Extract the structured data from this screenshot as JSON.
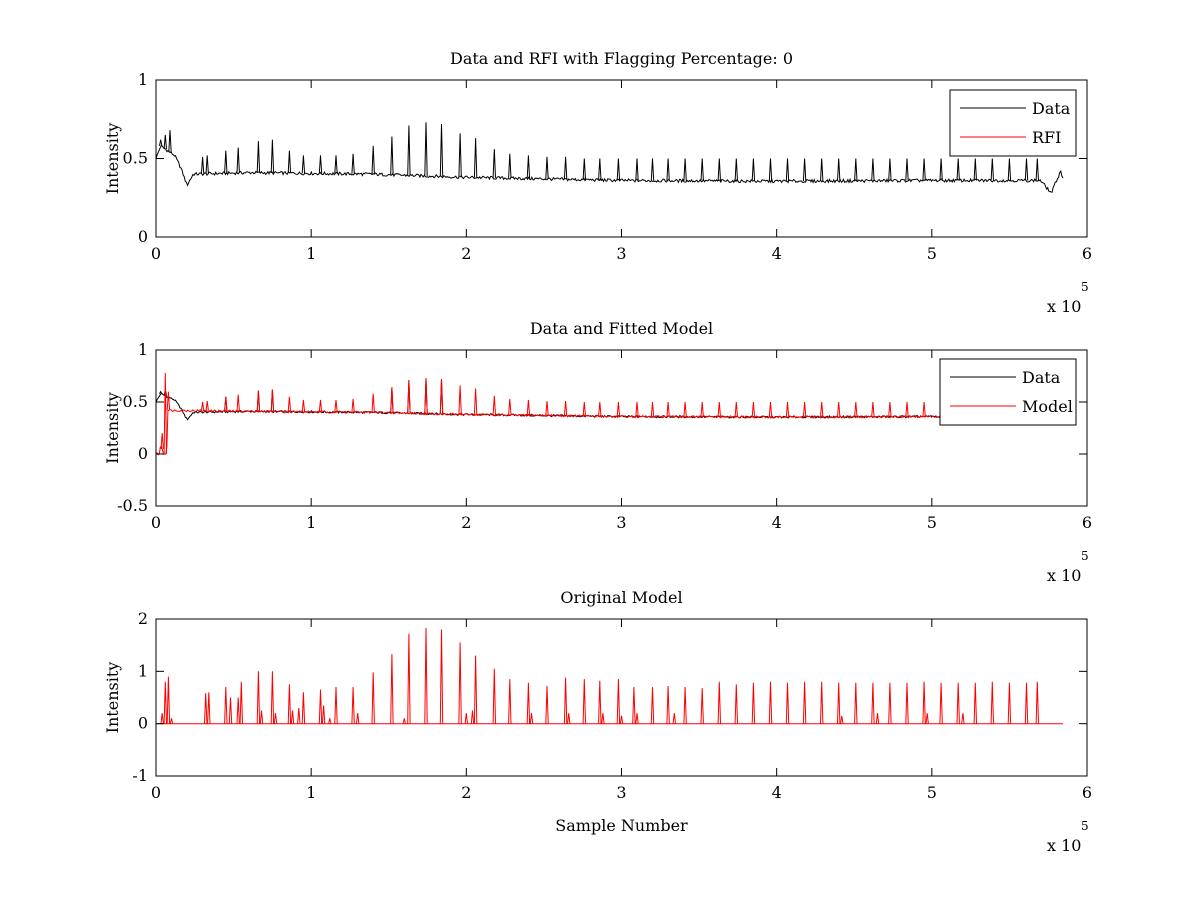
{
  "chart_data": [
    {
      "type": "line",
      "title": "Data and RFI with Flagging Percentage: 0",
      "xlabel": "",
      "ylabel": "Intensity",
      "xlim": [
        0,
        600000
      ],
      "ylim": [
        0,
        1
      ],
      "xticks": [
        0,
        100000,
        200000,
        300000,
        400000,
        500000,
        600000
      ],
      "xtick_labels": [
        "0",
        "1",
        "2",
        "3",
        "4",
        "5",
        "6"
      ],
      "x_multiplier_label": "x 10",
      "x_multiplier_exponent": "5",
      "yticks": [
        0,
        0.5,
        1
      ],
      "ytick_labels": [
        "0",
        "0.5",
        "1"
      ],
      "legend_position": "top-right",
      "series": [
        {
          "name": "Data",
          "color": "#000000",
          "kind": "data",
          "x_end": 585000,
          "baseline_points": [
            [
              0,
              0.5
            ],
            [
              3000,
              0.58
            ],
            [
              12000,
              0.52
            ],
            [
              16000,
              0.44
            ],
            [
              20000,
              0.33
            ],
            [
              24000,
              0.4
            ],
            [
              60000,
              0.41
            ],
            [
              140000,
              0.4
            ],
            [
              200000,
              0.38
            ],
            [
              300000,
              0.36
            ],
            [
              400000,
              0.355
            ],
            [
              500000,
              0.36
            ],
            [
              570000,
              0.36
            ],
            [
              577000,
              0.28
            ],
            [
              583000,
              0.42
            ],
            [
              585000,
              0.36
            ]
          ],
          "peaks": [
            [
              3000,
              0.62
            ],
            [
              6000,
              0.65
            ],
            [
              9000,
              0.68
            ],
            [
              30000,
              0.51
            ],
            [
              33000,
              0.52
            ],
            [
              45000,
              0.55
            ],
            [
              53000,
              0.57
            ],
            [
              66000,
              0.61
            ],
            [
              75000,
              0.62
            ],
            [
              86000,
              0.55
            ],
            [
              95000,
              0.52
            ],
            [
              106000,
              0.52
            ],
            [
              116000,
              0.52
            ],
            [
              127000,
              0.53
            ],
            [
              140000,
              0.58
            ],
            [
              152000,
              0.64
            ],
            [
              163000,
              0.71
            ],
            [
              174000,
              0.73
            ],
            [
              184000,
              0.72
            ],
            [
              196000,
              0.66
            ],
            [
              206000,
              0.63
            ],
            [
              218000,
              0.56
            ],
            [
              228000,
              0.53
            ],
            [
              240000,
              0.52
            ],
            [
              252000,
              0.51
            ],
            [
              264000,
              0.51
            ],
            [
              276000,
              0.5
            ],
            [
              286000,
              0.5
            ],
            [
              298000,
              0.5
            ],
            [
              310000,
              0.5
            ],
            [
              320000,
              0.5
            ],
            [
              330000,
              0.5
            ],
            [
              341000,
              0.5
            ],
            [
              352000,
              0.5
            ],
            [
              363000,
              0.5
            ],
            [
              374000,
              0.5
            ],
            [
              385000,
              0.5
            ],
            [
              396000,
              0.5
            ],
            [
              407000,
              0.5
            ],
            [
              418000,
              0.5
            ],
            [
              429000,
              0.5
            ],
            [
              440000,
              0.5
            ],
            [
              451000,
              0.5
            ],
            [
              462000,
              0.5
            ],
            [
              473000,
              0.5
            ],
            [
              484000,
              0.5
            ],
            [
              495000,
              0.5
            ],
            [
              506000,
              0.5
            ],
            [
              517000,
              0.5
            ],
            [
              528000,
              0.5
            ],
            [
              539000,
              0.5
            ],
            [
              550000,
              0.5
            ],
            [
              561000,
              0.5
            ],
            [
              568000,
              0.5
            ]
          ]
        },
        {
          "name": "RFI",
          "color": "#ff0000",
          "kind": "none"
        }
      ]
    },
    {
      "type": "line",
      "title": "Data and Fitted Model",
      "xlabel": "",
      "ylabel": "Intensity",
      "xlim": [
        0,
        600000
      ],
      "ylim": [
        -0.5,
        1
      ],
      "xticks": [
        0,
        100000,
        200000,
        300000,
        400000,
        500000,
        600000
      ],
      "xtick_labels": [
        "0",
        "1",
        "2",
        "3",
        "4",
        "5",
        "6"
      ],
      "x_multiplier_label": "x 10",
      "x_multiplier_exponent": "5",
      "yticks": [
        -0.5,
        0,
        0.5,
        1
      ],
      "ytick_labels": [
        "-0.5",
        "0",
        "0.5",
        "1"
      ],
      "legend_position": "top-right",
      "series": [
        {
          "name": "Data",
          "color": "#000000",
          "kind": "data",
          "x_end": 585000,
          "baseline_points": [
            [
              0,
              0.5
            ],
            [
              3000,
              0.58
            ],
            [
              12000,
              0.52
            ],
            [
              16000,
              0.44
            ],
            [
              20000,
              0.33
            ],
            [
              24000,
              0.4
            ],
            [
              60000,
              0.41
            ],
            [
              140000,
              0.4
            ],
            [
              200000,
              0.38
            ],
            [
              300000,
              0.36
            ],
            [
              400000,
              0.355
            ],
            [
              500000,
              0.36
            ],
            [
              570000,
              0.36
            ],
            [
              577000,
              0.28
            ],
            [
              583000,
              0.42
            ],
            [
              585000,
              0.36
            ]
          ],
          "peaks": [
            [
              3000,
              0.6
            ],
            [
              6000,
              0.62
            ],
            [
              45000,
              0.55
            ],
            [
              66000,
              0.61
            ],
            [
              75000,
              0.62
            ],
            [
              152000,
              0.64
            ],
            [
              163000,
              0.71
            ],
            [
              174000,
              0.73
            ],
            [
              184000,
              0.72
            ]
          ]
        },
        {
          "name": "Model",
          "color": "#ff0000",
          "kind": "model",
          "x_end": 568000,
          "baseline_points": [
            [
              0,
              0.0
            ],
            [
              2500,
              0.0
            ],
            [
              3000,
              0.1
            ],
            [
              5000,
              0.0
            ],
            [
              6500,
              0.0
            ],
            [
              7000,
              0.08
            ],
            [
              7500,
              0.42
            ],
            [
              60000,
              0.41
            ],
            [
              140000,
              0.4
            ],
            [
              200000,
              0.38
            ],
            [
              300000,
              0.36
            ],
            [
              400000,
              0.355
            ],
            [
              500000,
              0.36
            ],
            [
              568000,
              0.36
            ]
          ],
          "peaks": [
            [
              4000,
              0.2
            ],
            [
              6000,
              0.78
            ],
            [
              8000,
              0.6
            ],
            [
              30000,
              0.5
            ],
            [
              33000,
              0.51
            ],
            [
              45000,
              0.55
            ],
            [
              53000,
              0.57
            ],
            [
              66000,
              0.61
            ],
            [
              75000,
              0.62
            ],
            [
              86000,
              0.55
            ],
            [
              95000,
              0.52
            ],
            [
              106000,
              0.52
            ],
            [
              116000,
              0.52
            ],
            [
              127000,
              0.53
            ],
            [
              140000,
              0.58
            ],
            [
              152000,
              0.64
            ],
            [
              163000,
              0.71
            ],
            [
              174000,
              0.73
            ],
            [
              184000,
              0.72
            ],
            [
              196000,
              0.66
            ],
            [
              206000,
              0.63
            ],
            [
              218000,
              0.56
            ],
            [
              228000,
              0.53
            ],
            [
              240000,
              0.52
            ],
            [
              252000,
              0.51
            ],
            [
              264000,
              0.51
            ],
            [
              276000,
              0.5
            ],
            [
              286000,
              0.5
            ],
            [
              298000,
              0.5
            ],
            [
              310000,
              0.5
            ],
            [
              320000,
              0.5
            ],
            [
              330000,
              0.5
            ],
            [
              341000,
              0.5
            ],
            [
              352000,
              0.5
            ],
            [
              363000,
              0.5
            ],
            [
              374000,
              0.5
            ],
            [
              385000,
              0.5
            ],
            [
              396000,
              0.5
            ],
            [
              407000,
              0.5
            ],
            [
              418000,
              0.5
            ],
            [
              429000,
              0.5
            ],
            [
              440000,
              0.5
            ],
            [
              451000,
              0.5
            ],
            [
              462000,
              0.5
            ],
            [
              473000,
              0.5
            ],
            [
              484000,
              0.5
            ],
            [
              495000,
              0.5
            ],
            [
              506000,
              0.5
            ],
            [
              517000,
              0.5
            ],
            [
              528000,
              0.5
            ],
            [
              539000,
              0.5
            ],
            [
              550000,
              0.5
            ],
            [
              561000,
              0.5
            ]
          ]
        }
      ]
    },
    {
      "type": "line",
      "title": "Original Model",
      "xlabel": "Sample Number",
      "ylabel": "Intensity",
      "xlim": [
        0,
        600000
      ],
      "ylim": [
        -1,
        2
      ],
      "xticks": [
        0,
        100000,
        200000,
        300000,
        400000,
        500000,
        600000
      ],
      "xtick_labels": [
        "0",
        "1",
        "2",
        "3",
        "4",
        "5",
        "6"
      ],
      "x_multiplier_label": "x 10",
      "x_multiplier_exponent": "5",
      "yticks": [
        -1,
        0,
        1,
        2
      ],
      "ytick_labels": [
        "-1",
        "0",
        "1",
        "2"
      ],
      "legend_position": "none",
      "series": [
        {
          "name": "",
          "color": "#ff0000",
          "kind": "spikes",
          "x_end": 585000,
          "baseline_points": [
            [
              0,
              0
            ],
            [
              585000,
              0
            ]
          ],
          "peaks": [
            [
              4000,
              0.2
            ],
            [
              6000,
              0.8
            ],
            [
              8000,
              0.9
            ],
            [
              10000,
              0.1
            ],
            [
              32000,
              0.58
            ],
            [
              34000,
              0.6
            ],
            [
              45000,
              0.7
            ],
            [
              48000,
              0.5
            ],
            [
              53000,
              0.5
            ],
            [
              55000,
              0.8
            ],
            [
              66000,
              1.0
            ],
            [
              68000,
              0.25
            ],
            [
              75000,
              1.0
            ],
            [
              77000,
              0.2
            ],
            [
              86000,
              0.75
            ],
            [
              88000,
              0.25
            ],
            [
              92000,
              0.3
            ],
            [
              95000,
              0.6
            ],
            [
              106000,
              0.65
            ],
            [
              108000,
              0.35
            ],
            [
              112000,
              0.1
            ],
            [
              116000,
              0.7
            ],
            [
              127000,
              0.7
            ],
            [
              130000,
              0.2
            ],
            [
              140000,
              0.98
            ],
            [
              152000,
              1.33
            ],
            [
              160000,
              0.1
            ],
            [
              163000,
              1.72
            ],
            [
              174000,
              1.83
            ],
            [
              184000,
              1.8
            ],
            [
              196000,
              1.55
            ],
            [
              200000,
              0.2
            ],
            [
              204000,
              0.25
            ],
            [
              206000,
              1.3
            ],
            [
              218000,
              1.05
            ],
            [
              228000,
              0.85
            ],
            [
              240000,
              0.78
            ],
            [
              242000,
              0.2
            ],
            [
              252000,
              0.72
            ],
            [
              264000,
              0.88
            ],
            [
              266000,
              0.2
            ],
            [
              276000,
              0.85
            ],
            [
              286000,
              0.82
            ],
            [
              288000,
              0.2
            ],
            [
              298000,
              0.85
            ],
            [
              300000,
              0.15
            ],
            [
              308000,
              0.7
            ],
            [
              310000,
              0.2
            ],
            [
              320000,
              0.7
            ],
            [
              330000,
              0.72
            ],
            [
              334000,
              0.2
            ],
            [
              341000,
              0.7
            ],
            [
              352000,
              0.68
            ],
            [
              363000,
              0.8
            ],
            [
              374000,
              0.75
            ],
            [
              385000,
              0.78
            ],
            [
              396000,
              0.8
            ],
            [
              407000,
              0.78
            ],
            [
              418000,
              0.8
            ],
            [
              429000,
              0.8
            ],
            [
              440000,
              0.78
            ],
            [
              442000,
              0.15
            ],
            [
              451000,
              0.78
            ],
            [
              462000,
              0.78
            ],
            [
              465000,
              0.2
            ],
            [
              473000,
              0.78
            ],
            [
              484000,
              0.78
            ],
            [
              495000,
              0.8
            ],
            [
              497000,
              0.2
            ],
            [
              506000,
              0.78
            ],
            [
              517000,
              0.78
            ],
            [
              520000,
              0.2
            ],
            [
              528000,
              0.78
            ],
            [
              539000,
              0.8
            ],
            [
              550000,
              0.78
            ],
            [
              561000,
              0.78
            ],
            [
              568000,
              0.8
            ]
          ]
        }
      ]
    }
  ]
}
